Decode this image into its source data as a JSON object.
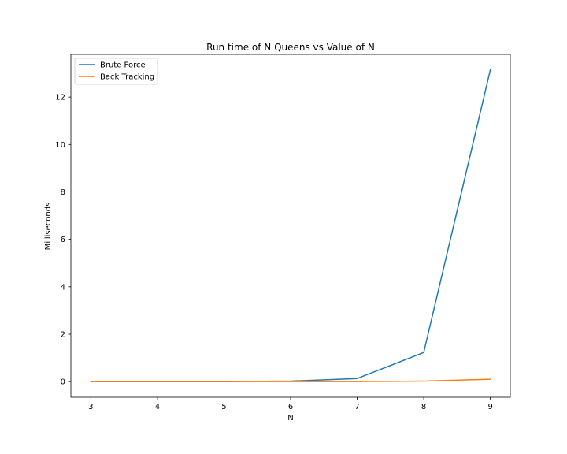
{
  "chart_data": {
    "type": "line",
    "title": "Run time of N Queens vs Value of N",
    "xlabel": "N",
    "ylabel": "Milliseconds",
    "x": [
      3,
      4,
      5,
      6,
      7,
      8,
      9
    ],
    "xlim": [
      2.7,
      9.3
    ],
    "ylim": [
      -0.66,
      13.8
    ],
    "xticks": [
      3,
      4,
      5,
      6,
      7,
      8,
      9
    ],
    "yticks": [
      0,
      2,
      4,
      6,
      8,
      10,
      12
    ],
    "grid": false,
    "legend_position": "top-left",
    "series": [
      {
        "name": "Brute Force",
        "color": "#1f77b4",
        "values": [
          0.0,
          0.0,
          0.0,
          0.02,
          0.13,
          1.23,
          13.15
        ]
      },
      {
        "name": "Back Tracking",
        "color": "#ff7f0e",
        "values": [
          0.0,
          0.0,
          0.0,
          0.0,
          0.0,
          0.02,
          0.1
        ]
      }
    ]
  }
}
